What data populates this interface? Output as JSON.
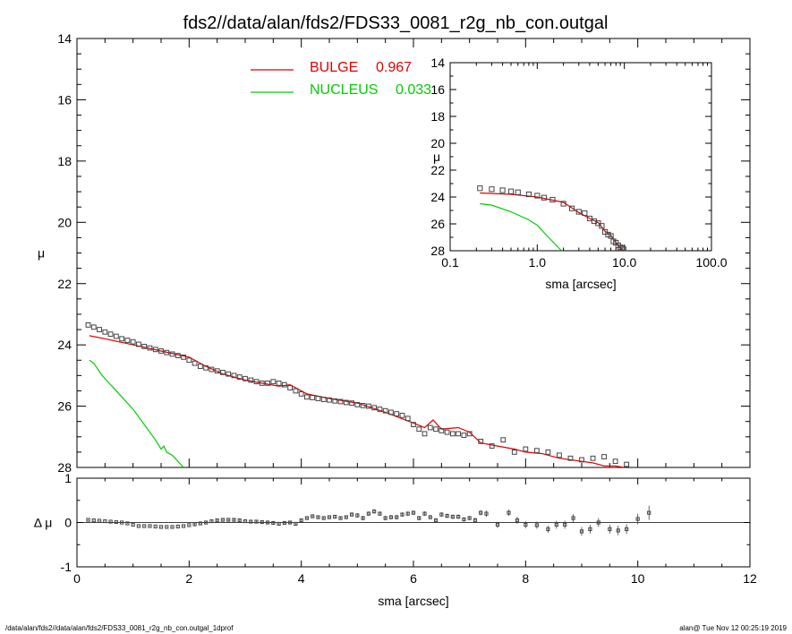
{
  "title": "fds2//data/alan/fds2/FDS33_0081_r2g_nb_con.outgal",
  "footer_left": "/data/alan/fds2//data/alan/fds2/FDS33_0081_r2g_nb_con.outgal_1dprof",
  "footer_right": "alan@  Tue Nov 12 00:25:19 2019",
  "colors": {
    "data": "#444444",
    "bulge": "#e00000",
    "nucleus": "#00cc00",
    "axis": "#000000"
  },
  "chart_data": [
    {
      "type": "line",
      "panel": "main",
      "xlabel": "sma [arcsec]",
      "ylabel": "μ",
      "xlim": [
        0,
        12
      ],
      "ylim": [
        28,
        14
      ],
      "xticks": [
        0,
        2,
        4,
        6,
        8,
        10,
        12
      ],
      "yticks": [
        14,
        16,
        18,
        20,
        22,
        24,
        26,
        28
      ],
      "legend_position": "top-center",
      "series": [
        {
          "name": "BULGE",
          "legend_value": "0.967",
          "color": "#e00000",
          "x": [
            0.22,
            0.5,
            1.0,
            1.5,
            2.0,
            2.3,
            2.6,
            3.0,
            3.3,
            3.6,
            3.8,
            3.95,
            4.1,
            4.5,
            5.0,
            5.5,
            6.0,
            6.2,
            6.35,
            6.5,
            6.8,
            7.0,
            7.2,
            7.5,
            7.8,
            8.0,
            8.3,
            8.6,
            9.0,
            9.2,
            9.4,
            9.6,
            9.75
          ],
          "y": [
            23.7,
            23.8,
            24.0,
            24.2,
            24.4,
            24.7,
            24.95,
            25.15,
            25.25,
            25.35,
            25.3,
            25.45,
            25.6,
            25.75,
            25.9,
            26.2,
            26.55,
            26.7,
            26.45,
            26.75,
            26.7,
            26.85,
            27.2,
            27.3,
            27.4,
            27.5,
            27.55,
            27.7,
            27.8,
            27.85,
            27.95,
            27.95,
            28.0
          ]
        },
        {
          "name": "NUCLEUS",
          "legend_value": "0.033",
          "color": "#00cc00",
          "x": [
            0.22,
            0.3,
            0.45,
            0.6,
            0.8,
            1.0,
            1.2,
            1.4,
            1.5,
            1.55,
            1.6,
            1.7,
            1.8,
            1.9
          ],
          "y": [
            24.5,
            24.6,
            25.0,
            25.3,
            25.7,
            26.1,
            26.6,
            27.1,
            27.4,
            27.3,
            27.5,
            27.6,
            27.8,
            28.0
          ]
        },
        {
          "name": "",
          "style": "square-markers",
          "color": "#444444",
          "x": [
            0.2,
            0.3,
            0.4,
            0.5,
            0.6,
            0.7,
            0.8,
            0.9,
            1.0,
            1.1,
            1.2,
            1.3,
            1.4,
            1.5,
            1.6,
            1.7,
            1.8,
            1.9,
            2.0,
            2.1,
            2.2,
            2.3,
            2.4,
            2.5,
            2.6,
            2.7,
            2.8,
            2.9,
            3.0,
            3.1,
            3.2,
            3.3,
            3.4,
            3.5,
            3.6,
            3.7,
            3.8,
            3.9,
            4.0,
            4.1,
            4.2,
            4.3,
            4.4,
            4.5,
            4.6,
            4.7,
            4.8,
            4.9,
            5.0,
            5.1,
            5.2,
            5.3,
            5.4,
            5.5,
            5.6,
            5.7,
            5.8,
            5.9,
            6.0,
            6.1,
            6.2,
            6.3,
            6.4,
            6.5,
            6.6,
            6.7,
            6.8,
            6.9,
            7.0,
            7.2,
            7.4,
            7.6,
            7.8,
            8.0,
            8.2,
            8.4,
            8.6,
            8.8,
            9.0,
            9.2,
            9.4,
            9.6,
            9.8
          ],
          "y": [
            23.35,
            23.42,
            23.5,
            23.58,
            23.65,
            23.72,
            23.8,
            23.85,
            23.9,
            23.98,
            24.05,
            24.1,
            24.15,
            24.2,
            24.25,
            24.3,
            24.35,
            24.4,
            24.5,
            24.6,
            24.7,
            24.75,
            24.8,
            24.85,
            24.9,
            24.95,
            25.0,
            25.05,
            25.1,
            25.15,
            25.2,
            25.25,
            25.25,
            25.2,
            25.25,
            25.3,
            25.4,
            25.5,
            25.6,
            25.7,
            25.72,
            25.75,
            25.78,
            25.8,
            25.83,
            25.85,
            25.88,
            25.9,
            25.95,
            25.98,
            26.0,
            26.05,
            26.1,
            26.15,
            26.2,
            26.25,
            26.3,
            26.4,
            26.6,
            26.75,
            26.9,
            26.7,
            26.75,
            26.8,
            26.85,
            26.9,
            26.9,
            26.95,
            26.9,
            27.15,
            27.3,
            27.1,
            27.5,
            27.4,
            27.45,
            27.5,
            27.6,
            27.7,
            27.75,
            27.7,
            27.65,
            27.8,
            27.9
          ]
        }
      ]
    },
    {
      "type": "line",
      "panel": "inset",
      "xlabel": "sma [arcsec]",
      "ylabel": "μ",
      "xscale": "log",
      "xlim": [
        0.1,
        100.0
      ],
      "ylim": [
        28,
        14
      ],
      "xtick_labels": [
        "0.1",
        "1.0",
        "10.0",
        "100.0"
      ],
      "xticks": [
        0.1,
        1.0,
        10.0,
        100.0
      ],
      "yticks": [
        14,
        16,
        18,
        20,
        22,
        24,
        26,
        28
      ],
      "series": [
        {
          "name": "BULGE",
          "color": "#e00000",
          "x": [
            0.22,
            0.5,
            1.0,
            2.0,
            3.0,
            4.0,
            5.0,
            6.0,
            7.0,
            8.0,
            9.0,
            9.8
          ],
          "y": [
            23.7,
            23.8,
            24.0,
            24.4,
            25.15,
            25.6,
            25.9,
            26.55,
            26.85,
            27.4,
            27.8,
            28.0
          ]
        },
        {
          "name": "NUCLEUS",
          "color": "#00cc00",
          "x": [
            0.22,
            0.3,
            0.5,
            0.8,
            1.0,
            1.3,
            1.6,
            1.9
          ],
          "y": [
            24.5,
            24.6,
            25.1,
            25.7,
            26.1,
            26.9,
            27.5,
            28.0
          ]
        },
        {
          "name": "",
          "style": "square-markers",
          "color": "#444444",
          "x": [
            0.22,
            0.3,
            0.4,
            0.5,
            0.6,
            0.8,
            1.0,
            1.2,
            1.5,
            2.0,
            2.5,
            3.0,
            3.5,
            4.0,
            4.5,
            5.0,
            5.5,
            6.0,
            6.5,
            7.0,
            7.5,
            8.0,
            8.5,
            9.0,
            9.5,
            9.8
          ],
          "y": [
            23.35,
            23.42,
            23.5,
            23.58,
            23.65,
            23.8,
            23.9,
            24.05,
            24.2,
            24.5,
            24.85,
            25.1,
            25.2,
            25.6,
            25.8,
            25.95,
            26.15,
            26.6,
            26.8,
            26.9,
            27.3,
            27.4,
            27.6,
            27.75,
            27.8,
            27.9
          ]
        }
      ]
    },
    {
      "type": "scatter",
      "panel": "residual",
      "xlabel": "sma [arcsec]",
      "ylabel": "Δ μ",
      "xlim": [
        0,
        12
      ],
      "ylim": [
        -1,
        1
      ],
      "xticks": [
        0,
        2,
        4,
        6,
        8,
        10,
        12
      ],
      "yticks": [
        -1,
        0,
        1
      ],
      "series": [
        {
          "name": "",
          "color": "#444444",
          "x": [
            0.2,
            0.3,
            0.4,
            0.5,
            0.6,
            0.7,
            0.8,
            0.9,
            1.0,
            1.1,
            1.2,
            1.3,
            1.4,
            1.5,
            1.6,
            1.7,
            1.8,
            1.9,
            2.0,
            2.1,
            2.2,
            2.3,
            2.4,
            2.5,
            2.6,
            2.7,
            2.8,
            2.9,
            3.0,
            3.1,
            3.2,
            3.3,
            3.4,
            3.5,
            3.6,
            3.7,
            3.8,
            3.9,
            4.0,
            4.1,
            4.2,
            4.3,
            4.4,
            4.5,
            4.6,
            4.7,
            4.8,
            4.9,
            5.0,
            5.1,
            5.2,
            5.3,
            5.4,
            5.5,
            5.6,
            5.7,
            5.8,
            5.9,
            6.0,
            6.1,
            6.2,
            6.3,
            6.4,
            6.5,
            6.6,
            6.7,
            6.8,
            6.9,
            7.0,
            7.1,
            7.2,
            7.3,
            7.5,
            7.7,
            7.85,
            8.0,
            8.2,
            8.4,
            8.55,
            8.7,
            8.85,
            9.0,
            9.15,
            9.3,
            9.5,
            9.65,
            9.8,
            10.0,
            10.2
          ],
          "y": [
            0.06,
            0.05,
            0.04,
            0.03,
            0.02,
            0.01,
            0.0,
            -0.02,
            -0.05,
            -0.08,
            -0.08,
            -0.08,
            -0.09,
            -0.1,
            -0.1,
            -0.1,
            -0.09,
            -0.08,
            -0.06,
            -0.04,
            -0.02,
            0.0,
            0.03,
            0.05,
            0.06,
            0.06,
            0.06,
            0.05,
            0.03,
            0.02,
            0.02,
            0.01,
            0.0,
            -0.01,
            -0.03,
            -0.01,
            0.0,
            -0.03,
            0.05,
            0.1,
            0.14,
            0.12,
            0.1,
            0.12,
            0.13,
            0.1,
            0.12,
            0.18,
            0.16,
            0.1,
            0.2,
            0.25,
            0.2,
            0.1,
            0.12,
            0.12,
            0.18,
            0.2,
            0.22,
            0.1,
            0.2,
            0.12,
            0.05,
            0.18,
            0.15,
            0.13,
            0.13,
            0.07,
            0.1,
            0.05,
            0.22,
            0.2,
            -0.05,
            0.22,
            0.05,
            -0.05,
            -0.06,
            -0.15,
            -0.05,
            -0.05,
            0.1,
            -0.2,
            -0.15,
            0.0,
            -0.15,
            -0.18,
            -0.15,
            0.08,
            0.22
          ],
          "yerr": [
            0.01,
            0.01,
            0.01,
            0.01,
            0.01,
            0.01,
            0.01,
            0.01,
            0.01,
            0.01,
            0.01,
            0.01,
            0.01,
            0.01,
            0.01,
            0.01,
            0.01,
            0.01,
            0.01,
            0.02,
            0.02,
            0.02,
            0.02,
            0.02,
            0.02,
            0.03,
            0.03,
            0.03,
            0.03,
            0.03,
            0.03,
            0.03,
            0.03,
            0.03,
            0.03,
            0.03,
            0.04,
            0.04,
            0.04,
            0.04,
            0.04,
            0.04,
            0.04,
            0.04,
            0.04,
            0.04,
            0.04,
            0.05,
            0.05,
            0.05,
            0.05,
            0.05,
            0.05,
            0.05,
            0.05,
            0.05,
            0.05,
            0.05,
            0.05,
            0.05,
            0.05,
            0.05,
            0.05,
            0.05,
            0.05,
            0.05,
            0.05,
            0.05,
            0.05,
            0.06,
            0.06,
            0.07,
            0.07,
            0.07,
            0.08,
            0.08,
            0.08,
            0.08,
            0.09,
            0.09,
            0.09,
            0.1,
            0.1,
            0.1,
            0.1,
            0.11,
            0.11,
            0.12,
            0.16
          ]
        }
      ]
    }
  ]
}
